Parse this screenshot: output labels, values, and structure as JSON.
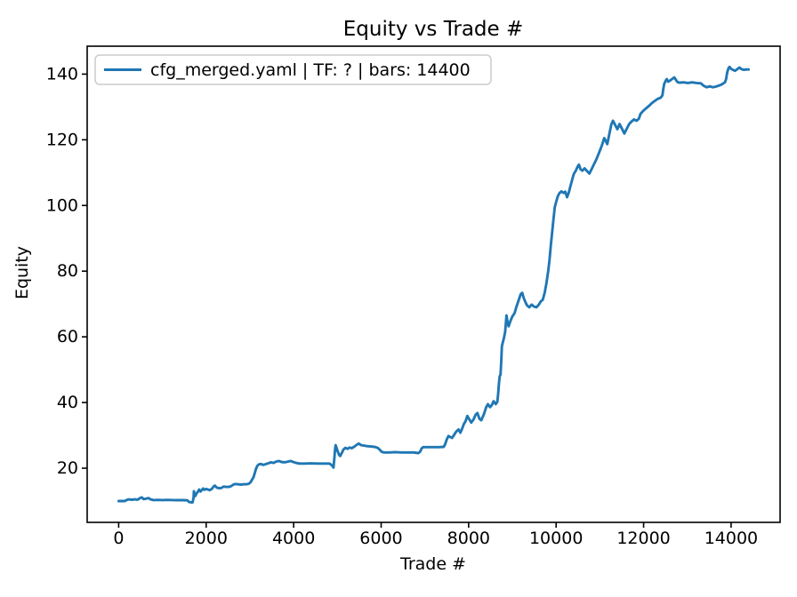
{
  "chart_data": {
    "type": "line",
    "title": "Equity vs Trade #",
    "xlabel": "Trade #",
    "ylabel": "Equity",
    "grid": false,
    "legend_position": "upper left",
    "legend": [
      {
        "label": "cfg_merged.yaml | TF: ? | bars: 14400",
        "color": "#1f77b4"
      }
    ],
    "x_ticks": [
      0,
      2000,
      4000,
      6000,
      8000,
      10000,
      12000,
      14000
    ],
    "y_ticks": [
      20,
      40,
      60,
      80,
      100,
      120,
      140
    ],
    "xlim": [
      -720,
      15120
    ],
    "ylim": [
      3.5,
      148.5
    ],
    "colors": {
      "line": "#1f77b4",
      "spine": "#000000",
      "text": "#000000",
      "legend_border": "#cccccc",
      "background": "#ffffff"
    },
    "series": [
      {
        "name": "cfg_merged.yaml | TF: ? | bars: 14400",
        "points": [
          [
            0,
            10.0
          ],
          [
            140,
            10.0
          ],
          [
            180,
            10.3
          ],
          [
            230,
            10.5
          ],
          [
            300,
            10.4
          ],
          [
            370,
            10.5
          ],
          [
            430,
            10.4
          ],
          [
            490,
            10.9
          ],
          [
            530,
            11.1
          ],
          [
            570,
            10.6
          ],
          [
            620,
            10.7
          ],
          [
            680,
            10.9
          ],
          [
            730,
            10.5
          ],
          [
            800,
            10.3
          ],
          [
            900,
            10.35
          ],
          [
            1000,
            10.3
          ],
          [
            1120,
            10.35
          ],
          [
            1240,
            10.3
          ],
          [
            1360,
            10.25
          ],
          [
            1480,
            10.25
          ],
          [
            1570,
            10.2
          ],
          [
            1610,
            9.7
          ],
          [
            1660,
            9.6
          ],
          [
            1690,
            9.6
          ],
          [
            1712,
            11.0
          ],
          [
            1720,
            13.0
          ],
          [
            1735,
            12.2
          ],
          [
            1750,
            11.5
          ],
          [
            1780,
            12.3
          ],
          [
            1810,
            12.8
          ],
          [
            1840,
            13.5
          ],
          [
            1870,
            12.9
          ],
          [
            1900,
            13.3
          ],
          [
            1930,
            13.8
          ],
          [
            1960,
            13.4
          ],
          [
            2000,
            13.7
          ],
          [
            2040,
            13.5
          ],
          [
            2080,
            13.3
          ],
          [
            2130,
            13.7
          ],
          [
            2170,
            14.4
          ],
          [
            2200,
            14.7
          ],
          [
            2240,
            14.1
          ],
          [
            2300,
            13.9
          ],
          [
            2350,
            14.0
          ],
          [
            2400,
            14.4
          ],
          [
            2460,
            14.3
          ],
          [
            2520,
            14.3
          ],
          [
            2580,
            14.6
          ],
          [
            2620,
            15.0
          ],
          [
            2660,
            15.2
          ],
          [
            2720,
            15.1
          ],
          [
            2790,
            15.0
          ],
          [
            2860,
            15.1
          ],
          [
            2930,
            15.1
          ],
          [
            2980,
            15.3
          ],
          [
            3020,
            15.8
          ],
          [
            3050,
            16.5
          ],
          [
            3080,
            17.2
          ],
          [
            3110,
            18.5
          ],
          [
            3140,
            19.8
          ],
          [
            3170,
            20.7
          ],
          [
            3200,
            21.1
          ],
          [
            3250,
            21.3
          ],
          [
            3300,
            21.0
          ],
          [
            3350,
            21.2
          ],
          [
            3420,
            21.5
          ],
          [
            3480,
            21.8
          ],
          [
            3540,
            21.6
          ],
          [
            3600,
            22.0
          ],
          [
            3660,
            22.2
          ],
          [
            3720,
            21.9
          ],
          [
            3800,
            21.8
          ],
          [
            3870,
            22.0
          ],
          [
            3930,
            22.2
          ],
          [
            3990,
            21.9
          ],
          [
            4060,
            21.6
          ],
          [
            4130,
            21.4
          ],
          [
            4250,
            21.4
          ],
          [
            4400,
            21.45
          ],
          [
            4550,
            21.4
          ],
          [
            4700,
            21.4
          ],
          [
            4820,
            21.4
          ],
          [
            4880,
            20.8
          ],
          [
            4910,
            20.2
          ],
          [
            4930,
            23.0
          ],
          [
            4945,
            25.5
          ],
          [
            4960,
            27.0
          ],
          [
            4985,
            26.0
          ],
          [
            5010,
            25.0
          ],
          [
            5040,
            24.0
          ],
          [
            5065,
            23.7
          ],
          [
            5100,
            24.6
          ],
          [
            5140,
            25.7
          ],
          [
            5180,
            26.2
          ],
          [
            5230,
            25.9
          ],
          [
            5280,
            26.3
          ],
          [
            5330,
            26.1
          ],
          [
            5390,
            26.6
          ],
          [
            5450,
            27.2
          ],
          [
            5490,
            27.5
          ],
          [
            5540,
            27.0
          ],
          [
            5600,
            26.9
          ],
          [
            5680,
            26.7
          ],
          [
            5760,
            26.6
          ],
          [
            5850,
            26.5
          ],
          [
            5920,
            26.2
          ],
          [
            5970,
            25.6
          ],
          [
            6010,
            25.0
          ],
          [
            6060,
            24.8
          ],
          [
            6180,
            24.8
          ],
          [
            6320,
            24.9
          ],
          [
            6460,
            24.8
          ],
          [
            6600,
            24.8
          ],
          [
            6740,
            24.8
          ],
          [
            6850,
            24.6
          ],
          [
            6890,
            25.0
          ],
          [
            6925,
            26.0
          ],
          [
            6960,
            26.4
          ],
          [
            7080,
            26.4
          ],
          [
            7200,
            26.4
          ],
          [
            7320,
            26.4
          ],
          [
            7430,
            26.5
          ],
          [
            7460,
            27.2
          ],
          [
            7500,
            28.8
          ],
          [
            7540,
            29.8
          ],
          [
            7580,
            29.5
          ],
          [
            7620,
            29.2
          ],
          [
            7670,
            30.2
          ],
          [
            7720,
            31.2
          ],
          [
            7770,
            31.8
          ],
          [
            7810,
            30.8
          ],
          [
            7850,
            32.0
          ],
          [
            7890,
            33.4
          ],
          [
            7930,
            34.3
          ],
          [
            7970,
            35.9
          ],
          [
            8010,
            35.0
          ],
          [
            8060,
            33.9
          ],
          [
            8110,
            34.8
          ],
          [
            8160,
            36.3
          ],
          [
            8200,
            36.8
          ],
          [
            8250,
            35.0
          ],
          [
            8290,
            34.6
          ],
          [
            8350,
            36.5
          ],
          [
            8400,
            38.5
          ],
          [
            8440,
            39.5
          ],
          [
            8490,
            38.6
          ],
          [
            8530,
            39.2
          ],
          [
            8570,
            40.4
          ],
          [
            8620,
            39.5
          ],
          [
            8655,
            40.2
          ],
          [
            8675,
            42.5
          ],
          [
            8695,
            46.0
          ],
          [
            8710,
            48.0
          ],
          [
            8730,
            48.5
          ],
          [
            8745,
            52.5
          ],
          [
            8760,
            57.0
          ],
          [
            8775,
            58.0
          ],
          [
            8805,
            59.5
          ],
          [
            8835,
            61.5
          ],
          [
            8865,
            66.5
          ],
          [
            8890,
            64.5
          ],
          [
            8915,
            63.2
          ],
          [
            8955,
            64.8
          ],
          [
            9000,
            66.2
          ],
          [
            9050,
            67.2
          ],
          [
            9090,
            69.0
          ],
          [
            9140,
            71.0
          ],
          [
            9190,
            73.0
          ],
          [
            9225,
            73.4
          ],
          [
            9260,
            71.8
          ],
          [
            9300,
            70.5
          ],
          [
            9335,
            69.6
          ],
          [
            9385,
            69.0
          ],
          [
            9440,
            69.8
          ],
          [
            9495,
            69.2
          ],
          [
            9550,
            69.0
          ],
          [
            9605,
            69.8
          ],
          [
            9650,
            70.8
          ],
          [
            9695,
            71.3
          ],
          [
            9740,
            73.5
          ],
          [
            9780,
            76.5
          ],
          [
            9820,
            80.0
          ],
          [
            9850,
            83.5
          ],
          [
            9880,
            88.0
          ],
          [
            9910,
            92.0
          ],
          [
            9940,
            96.0
          ],
          [
            9970,
            99.5
          ],
          [
            9990,
            100.5
          ],
          [
            10020,
            102.0
          ],
          [
            10045,
            103.0
          ],
          [
            10080,
            103.8
          ],
          [
            10120,
            104.3
          ],
          [
            10170,
            103.8
          ],
          [
            10210,
            104.2
          ],
          [
            10250,
            102.5
          ],
          [
            10290,
            104.0
          ],
          [
            10330,
            106.0
          ],
          [
            10360,
            107.5
          ],
          [
            10400,
            109.5
          ],
          [
            10450,
            110.6
          ],
          [
            10490,
            111.8
          ],
          [
            10520,
            112.4
          ],
          [
            10560,
            111.0
          ],
          [
            10600,
            110.6
          ],
          [
            10650,
            111.3
          ],
          [
            10710,
            110.4
          ],
          [
            10760,
            109.7
          ],
          [
            10810,
            111.0
          ],
          [
            10860,
            112.4
          ],
          [
            10920,
            114.0
          ],
          [
            10980,
            116.0
          ],
          [
            11040,
            118.0
          ],
          [
            11100,
            120.5
          ],
          [
            11140,
            119.5
          ],
          [
            11170,
            118.7
          ],
          [
            11220,
            122.0
          ],
          [
            11260,
            124.6
          ],
          [
            11300,
            125.8
          ],
          [
            11350,
            124.5
          ],
          [
            11400,
            123.2
          ],
          [
            11450,
            124.8
          ],
          [
            11500,
            123.5
          ],
          [
            11560,
            121.9
          ],
          [
            11620,
            123.5
          ],
          [
            11670,
            124.8
          ],
          [
            11720,
            125.5
          ],
          [
            11780,
            126.2
          ],
          [
            11840,
            125.8
          ],
          [
            11890,
            126.4
          ],
          [
            11930,
            127.9
          ],
          [
            11990,
            128.8
          ],
          [
            12050,
            129.5
          ],
          [
            12120,
            130.3
          ],
          [
            12190,
            131.2
          ],
          [
            12260,
            131.9
          ],
          [
            12330,
            132.5
          ],
          [
            12390,
            132.8
          ],
          [
            12430,
            133.5
          ],
          [
            12450,
            135.5
          ],
          [
            12470,
            137.0
          ],
          [
            12500,
            137.9
          ],
          [
            12530,
            138.5
          ],
          [
            12560,
            137.7
          ],
          [
            12600,
            138.0
          ],
          [
            12650,
            138.5
          ],
          [
            12700,
            139.0
          ],
          [
            12740,
            138.2
          ],
          [
            12780,
            137.5
          ],
          [
            12830,
            137.4
          ],
          [
            12920,
            137.5
          ],
          [
            13010,
            137.3
          ],
          [
            13110,
            137.5
          ],
          [
            13210,
            137.3
          ],
          [
            13310,
            137.2
          ],
          [
            13370,
            136.5
          ],
          [
            13440,
            136.0
          ],
          [
            13510,
            136.3
          ],
          [
            13580,
            136.0
          ],
          [
            13650,
            136.2
          ],
          [
            13720,
            136.5
          ],
          [
            13790,
            136.9
          ],
          [
            13860,
            137.5
          ],
          [
            13885,
            138.5
          ],
          [
            13910,
            140.5
          ],
          [
            13940,
            141.8
          ],
          [
            13965,
            142.2
          ],
          [
            14000,
            141.6
          ],
          [
            14040,
            141.3
          ],
          [
            14090,
            141.0
          ],
          [
            14140,
            141.5
          ],
          [
            14190,
            142.0
          ],
          [
            14240,
            141.5
          ],
          [
            14290,
            141.3
          ],
          [
            14350,
            141.4
          ],
          [
            14400,
            141.4
          ]
        ]
      }
    ]
  }
}
